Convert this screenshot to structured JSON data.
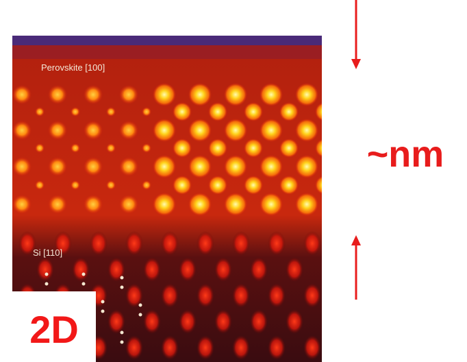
{
  "image": {
    "labels": {
      "perovskite": "Perovskite [100]",
      "silicon": "Si [110]"
    }
  },
  "annotations": {
    "scale": "~nm",
    "dimension": "2D"
  }
}
